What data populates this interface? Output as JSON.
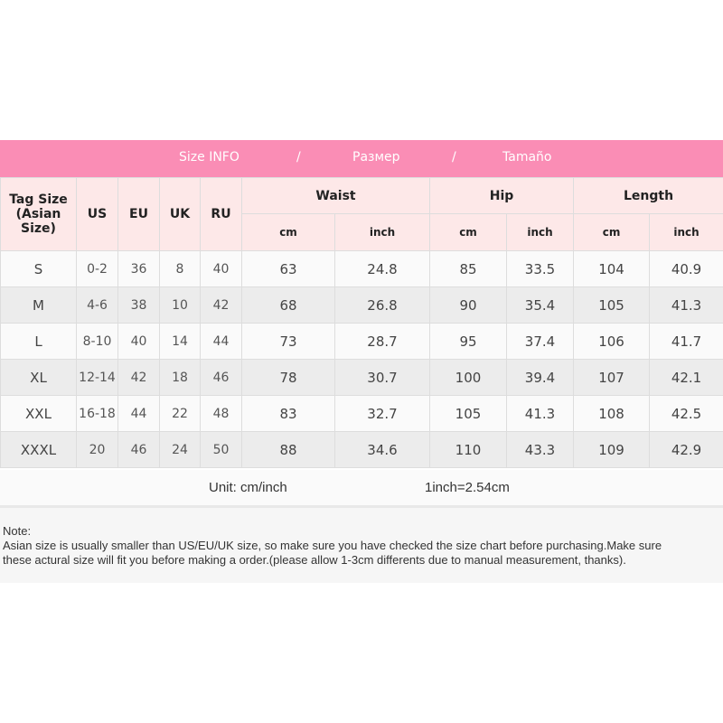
{
  "banner": {
    "en": "Size INFO",
    "sep": "/",
    "ru": "Размер",
    "es": "Tamaño"
  },
  "headers": {
    "tag_size": "Tag Size",
    "asian_size": "(Asian Size)",
    "us": "US",
    "eu": "EU",
    "uk": "UK",
    "ru": "RU",
    "waist": "Waist",
    "hip": "Hip",
    "length": "Length",
    "cm": "cm",
    "inch": "inch"
  },
  "rows": [
    [
      "S",
      "0-2",
      "36",
      "8",
      "40",
      "63",
      "24.8",
      "85",
      "33.5",
      "104",
      "40.9"
    ],
    [
      "M",
      "4-6",
      "38",
      "10",
      "42",
      "68",
      "26.8",
      "90",
      "35.4",
      "105",
      "41.3"
    ],
    [
      "L",
      "8-10",
      "40",
      "14",
      "44",
      "73",
      "28.7",
      "95",
      "37.4",
      "106",
      "41.7"
    ],
    [
      "XL",
      "12-14",
      "42",
      "18",
      "46",
      "78",
      "30.7",
      "100",
      "39.4",
      "107",
      "42.1"
    ],
    [
      "XXL",
      "16-18",
      "44",
      "22",
      "48",
      "83",
      "32.7",
      "105",
      "41.3",
      "108",
      "42.5"
    ],
    [
      "XXXL",
      "20",
      "46",
      "24",
      "50",
      "88",
      "34.6",
      "110",
      "43.3",
      "109",
      "42.9"
    ]
  ],
  "unit": {
    "label": "Unit: cm/inch",
    "conversion": "1inch=2.54cm"
  },
  "note": {
    "title": "Note:",
    "line1": "Asian size is usually smaller than US/EU/UK size, so make sure you have checked the size chart before purchasing.Make sure",
    "line2": "these actural size will fit you before making a order.(please allow 1-3cm differents due to manual measurement, thanks)."
  }
}
